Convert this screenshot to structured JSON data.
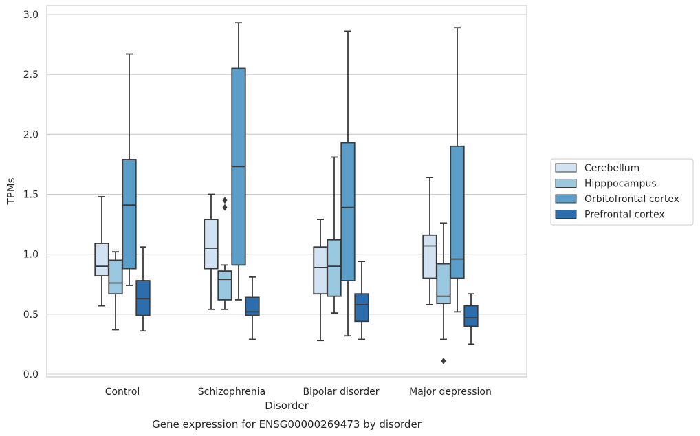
{
  "caption": "Gene expression for ENSG00000269473 by disorder",
  "chart_data": {
    "type": "boxplot",
    "title": "",
    "xlabel": "Disorder",
    "ylabel": "TPMs",
    "ylim": [
      -0.02,
      3.07
    ],
    "yticks": [
      0.0,
      0.5,
      1.0,
      1.5,
      2.0,
      2.5,
      3.0
    ],
    "ytick_labels": [
      "0.0",
      "0.5",
      "1.0",
      "1.5",
      "2.0",
      "2.5",
      "3.0"
    ],
    "grid": "horizontal",
    "legend_position": "right",
    "categories": [
      "Control",
      "Schizophrenia",
      "Bipolar disorder",
      "Major depression"
    ],
    "series": [
      {
        "name": "Cerebellum",
        "color": "#d1e2f2",
        "boxes": [
          {
            "whislo": 0.57,
            "q1": 0.82,
            "med": 0.9,
            "q3": 1.09,
            "whishi": 1.48,
            "fliers": []
          },
          {
            "whislo": 0.54,
            "q1": 0.88,
            "med": 1.05,
            "q3": 1.29,
            "whishi": 1.5,
            "fliers": []
          },
          {
            "whislo": 0.28,
            "q1": 0.67,
            "med": 0.89,
            "q3": 1.06,
            "whishi": 1.29,
            "fliers": []
          },
          {
            "whislo": 0.58,
            "q1": 0.8,
            "med": 1.07,
            "q3": 1.16,
            "whishi": 1.64,
            "fliers": []
          }
        ]
      },
      {
        "name": "Hipppocampus",
        "color": "#9ac8e0",
        "boxes": [
          {
            "whislo": 0.37,
            "q1": 0.67,
            "med": 0.76,
            "q3": 0.95,
            "whishi": 1.02,
            "fliers": []
          },
          {
            "whislo": 0.54,
            "q1": 0.62,
            "med": 0.79,
            "q3": 0.86,
            "whishi": 0.91,
            "fliers": [
              1.39,
              1.45
            ]
          },
          {
            "whislo": 0.51,
            "q1": 0.65,
            "med": 0.9,
            "q3": 1.12,
            "whishi": 1.81,
            "fliers": []
          },
          {
            "whislo": 0.29,
            "q1": 0.59,
            "med": 0.65,
            "q3": 0.92,
            "whishi": 1.26,
            "fliers": [
              0.11
            ]
          }
        ]
      },
      {
        "name": "Orbitofrontal cortex",
        "color": "#5a9ec9",
        "boxes": [
          {
            "whislo": 0.74,
            "q1": 0.88,
            "med": 1.41,
            "q3": 1.79,
            "whishi": 2.67,
            "fliers": []
          },
          {
            "whislo": 0.62,
            "q1": 0.91,
            "med": 1.73,
            "q3": 2.55,
            "whishi": 2.93,
            "fliers": []
          },
          {
            "whislo": 0.32,
            "q1": 0.78,
            "med": 1.39,
            "q3": 1.93,
            "whishi": 2.86,
            "fliers": []
          },
          {
            "whislo": 0.52,
            "q1": 0.8,
            "med": 0.96,
            "q3": 1.9,
            "whishi": 2.89,
            "fliers": []
          }
        ]
      },
      {
        "name": "Prefrontal cortex",
        "color": "#2c6ead",
        "boxes": [
          {
            "whislo": 0.36,
            "q1": 0.49,
            "med": 0.63,
            "q3": 0.78,
            "whishi": 1.06,
            "fliers": []
          },
          {
            "whislo": 0.29,
            "q1": 0.49,
            "med": 0.52,
            "q3": 0.64,
            "whishi": 0.81,
            "fliers": []
          },
          {
            "whislo": 0.29,
            "q1": 0.44,
            "med": 0.58,
            "q3": 0.67,
            "whishi": 0.94,
            "fliers": []
          },
          {
            "whislo": 0.25,
            "q1": 0.4,
            "med": 0.47,
            "q3": 0.57,
            "whishi": 0.67,
            "fliers": []
          }
        ]
      }
    ]
  }
}
